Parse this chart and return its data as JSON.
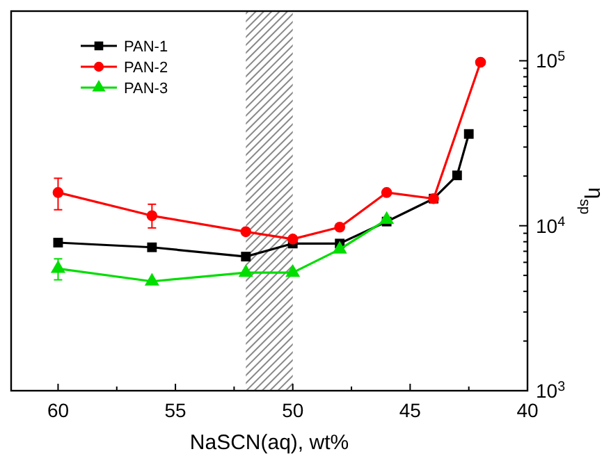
{
  "chart_data": {
    "type": "line",
    "xlabel": "NaSCN(aq), wt%",
    "ylabel": "η$_{sp}$",
    "log": "y",
    "grid": false,
    "legend": "top left",
    "line_style": "solid",
    "xlim": [
      62,
      40
    ],
    "xticks": [
      60,
      {
        "value": 57.5,
        "label": null
      },
      55,
      {
        "value": 52.5,
        "label": null
      },
      50,
      {
        "value": 47.5,
        "label": null
      },
      45,
      {
        "value": 42.5,
        "label": null
      },
      40
    ],
    "ylim": [
      1000,
      200000
    ],
    "yticks": [
      {
        "value": 1000,
        "label": "10$^{3}$"
      },
      {
        "value": 2000,
        "label": null
      },
      {
        "value": 3000,
        "label": null
      },
      {
        "value": 4000,
        "label": null
      },
      {
        "value": 5000,
        "label": null
      },
      {
        "value": 6000,
        "label": null
      },
      {
        "value": 7000,
        "label": null
      },
      {
        "value": 8000,
        "label": null
      },
      {
        "value": 9000,
        "label": null
      },
      {
        "value": 10000,
        "label": "10$^{4}$"
      },
      {
        "value": 20000,
        "label": null
      },
      {
        "value": 30000,
        "label": null
      },
      {
        "value": 40000,
        "label": null
      },
      {
        "value": 50000,
        "label": null
      },
      {
        "value": 60000,
        "label": null
      },
      {
        "value": 70000,
        "label": null
      },
      {
        "value": 80000,
        "label": null
      },
      {
        "value": 90000,
        "label": null
      },
      {
        "value": 100000,
        "label": "10$^{5}$"
      }
    ],
    "bands": [
      {
        "axis": "x",
        "from": 52,
        "to": 50,
        "color": "#888888"
      }
    ],
    "series": [
      {
        "name": "PAN-1",
        "color": "#000000",
        "marker": "square",
        "x": [
          60,
          56,
          52,
          50,
          48,
          46,
          44,
          43,
          42.5
        ],
        "values": [
          7900,
          7400,
          6500,
          7800,
          7800,
          10600,
          14600,
          20200,
          36000
        ]
      },
      {
        "name": "PAN-2",
        "color": "#ff0000",
        "marker": "circle",
        "x": [
          60,
          56,
          52,
          50,
          48,
          46,
          44,
          42
        ],
        "values": [
          15900,
          11500,
          9200,
          8300,
          9800,
          15900,
          14600,
          98000
        ],
        "errors": [
          [
            12500,
            19400
          ],
          [
            9700,
            13500
          ],
          null,
          null,
          null,
          null,
          null,
          null
        ]
      },
      {
        "name": "PAN-3",
        "color": "#00dd00",
        "marker": "triangle",
        "x": [
          60,
          56,
          52,
          50,
          48,
          46
        ],
        "values": [
          5500,
          4600,
          5200,
          5200,
          7200,
          10900
        ],
        "errors": [
          [
            4700,
            6300
          ],
          null,
          null,
          null,
          null,
          null
        ]
      }
    ]
  }
}
